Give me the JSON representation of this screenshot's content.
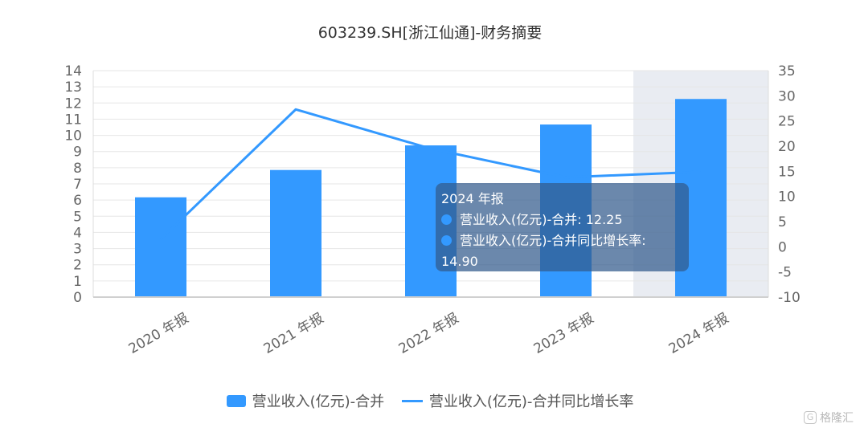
{
  "chart_data": {
    "type": "bar",
    "title": "603239.SH[浙江仙通]-财务摘要",
    "categories": [
      "2020 年报",
      "2021 年报",
      "2022 年报",
      "2023 年报",
      "2024 年报"
    ],
    "series": [
      {
        "name": "营业收入(亿元)-合并",
        "type": "bar",
        "axis": "left",
        "values": [
          6.17,
          7.86,
          9.38,
          10.67,
          12.25
        ]
      },
      {
        "name": "营业收入(亿元)-合并同比增长率",
        "type": "line",
        "axis": "right",
        "values": [
          1.5,
          27.3,
          19.5,
          13.8,
          14.9
        ]
      }
    ],
    "left_axis": {
      "min": 0,
      "max": 14,
      "ticks": [
        "0",
        "1",
        "2",
        "3",
        "4",
        "5",
        "6",
        "7",
        "8",
        "9",
        "10",
        "11",
        "12",
        "13",
        "14"
      ]
    },
    "right_axis": {
      "min": -10,
      "max": 35,
      "ticks": [
        "-10",
        "-5",
        "0",
        "5",
        "10",
        "15",
        "20",
        "25",
        "30",
        "35"
      ]
    },
    "grid": true,
    "highlighted_category": "2024 年报",
    "legend_position": "bottom",
    "colors": {
      "bar": "#3399ff",
      "line": "#3399ff",
      "highlight_band": "#e9ecf2"
    }
  },
  "tooltip": {
    "title": "2024 年报",
    "row1": "营业收入(亿元)-合并: 12.25",
    "row2_line1": "营业收入(亿元)-合并同比增长率:",
    "row2_line2": "14.90"
  },
  "legend": {
    "bar_label": "营业收入(亿元)-合并",
    "line_label": "营业收入(亿元)-合并同比增长率"
  },
  "watermark": {
    "badge": "G",
    "text": "格隆汇"
  }
}
